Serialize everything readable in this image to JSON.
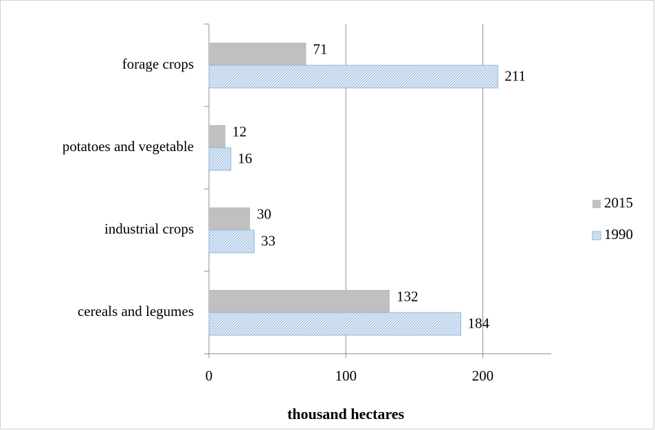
{
  "chart_data": {
    "type": "bar",
    "orientation": "horizontal",
    "x_label": "thousand hectares",
    "categories": [
      "cereals and legumes",
      "industrial crops",
      "potatoes and vegetable",
      "forage crops"
    ],
    "series": [
      {
        "name": "2015",
        "color": "#c0c0c0",
        "values": [
          132,
          30,
          12,
          71
        ]
      },
      {
        "name": "1990",
        "color": "#8fb4dc",
        "pattern": "hatched",
        "values": [
          184,
          33,
          16,
          211
        ]
      }
    ],
    "xlim": [
      0,
      250
    ],
    "xticks": [
      0,
      100,
      200
    ],
    "grid": true,
    "legend": "right"
  }
}
